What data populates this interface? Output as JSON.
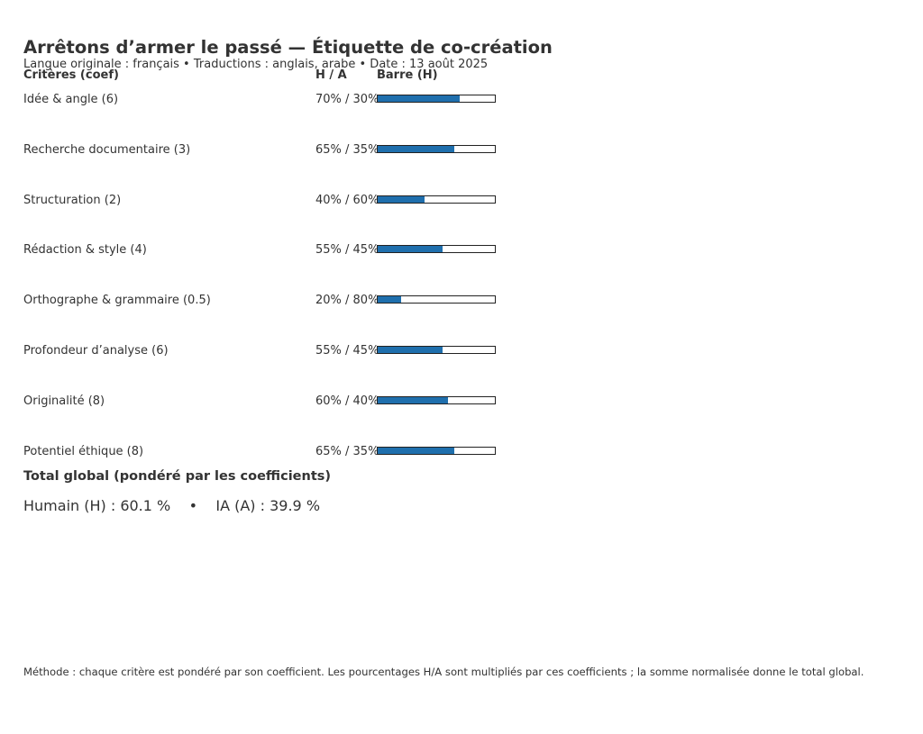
{
  "header": {
    "title": "Arrêtons d’armer le passé — Étiquette de co-création",
    "subtitle": "Langue originale : français • Traductions : anglais, arabe • Date : 13 août 2025"
  },
  "columns": {
    "criteria": "Critères (coef)",
    "ha": "H / A",
    "bar": "Barre (H)"
  },
  "chart_data": {
    "type": "bar",
    "orientation": "horizontal",
    "categories": [
      "Idée & angle (6)",
      "Recherche documentaire (3)",
      "Structuration (2)",
      "Rédaction & style (4)",
      "Orthographe & grammaire (0.5)",
      "Profondeur d’analyse (6)",
      "Originalité (8)",
      "Potentiel éthique (8)"
    ],
    "coefficients": [
      6,
      3,
      2,
      4,
      0.5,
      6,
      8,
      8
    ],
    "series": [
      {
        "name": "H",
        "values": [
          70,
          65,
          40,
          55,
          20,
          55,
          60,
          65
        ]
      },
      {
        "name": "A",
        "values": [
          30,
          35,
          60,
          45,
          80,
          45,
          40,
          35
        ]
      }
    ],
    "ha_labels": [
      "70% / 30%",
      "65% / 35%",
      "40% / 60%",
      "55% / 45%",
      "20% / 80%",
      "55% / 45%",
      "60% / 40%",
      "65% / 35%"
    ],
    "xlim": [
      0,
      100
    ],
    "bar_color": "#1f6fad"
  },
  "total": {
    "heading": "Total global (pondéré par les coefficients)",
    "human": "Humain (H) : 60.1 %",
    "separator": "•",
    "ai": "IA (A) : 39.9 %"
  },
  "footer": {
    "method": "Méthode : chaque critère est pondéré par son coefficient. Les pourcentages H/A sont multipliés par ces coefficients ; la somme normalisée donne le total global."
  }
}
